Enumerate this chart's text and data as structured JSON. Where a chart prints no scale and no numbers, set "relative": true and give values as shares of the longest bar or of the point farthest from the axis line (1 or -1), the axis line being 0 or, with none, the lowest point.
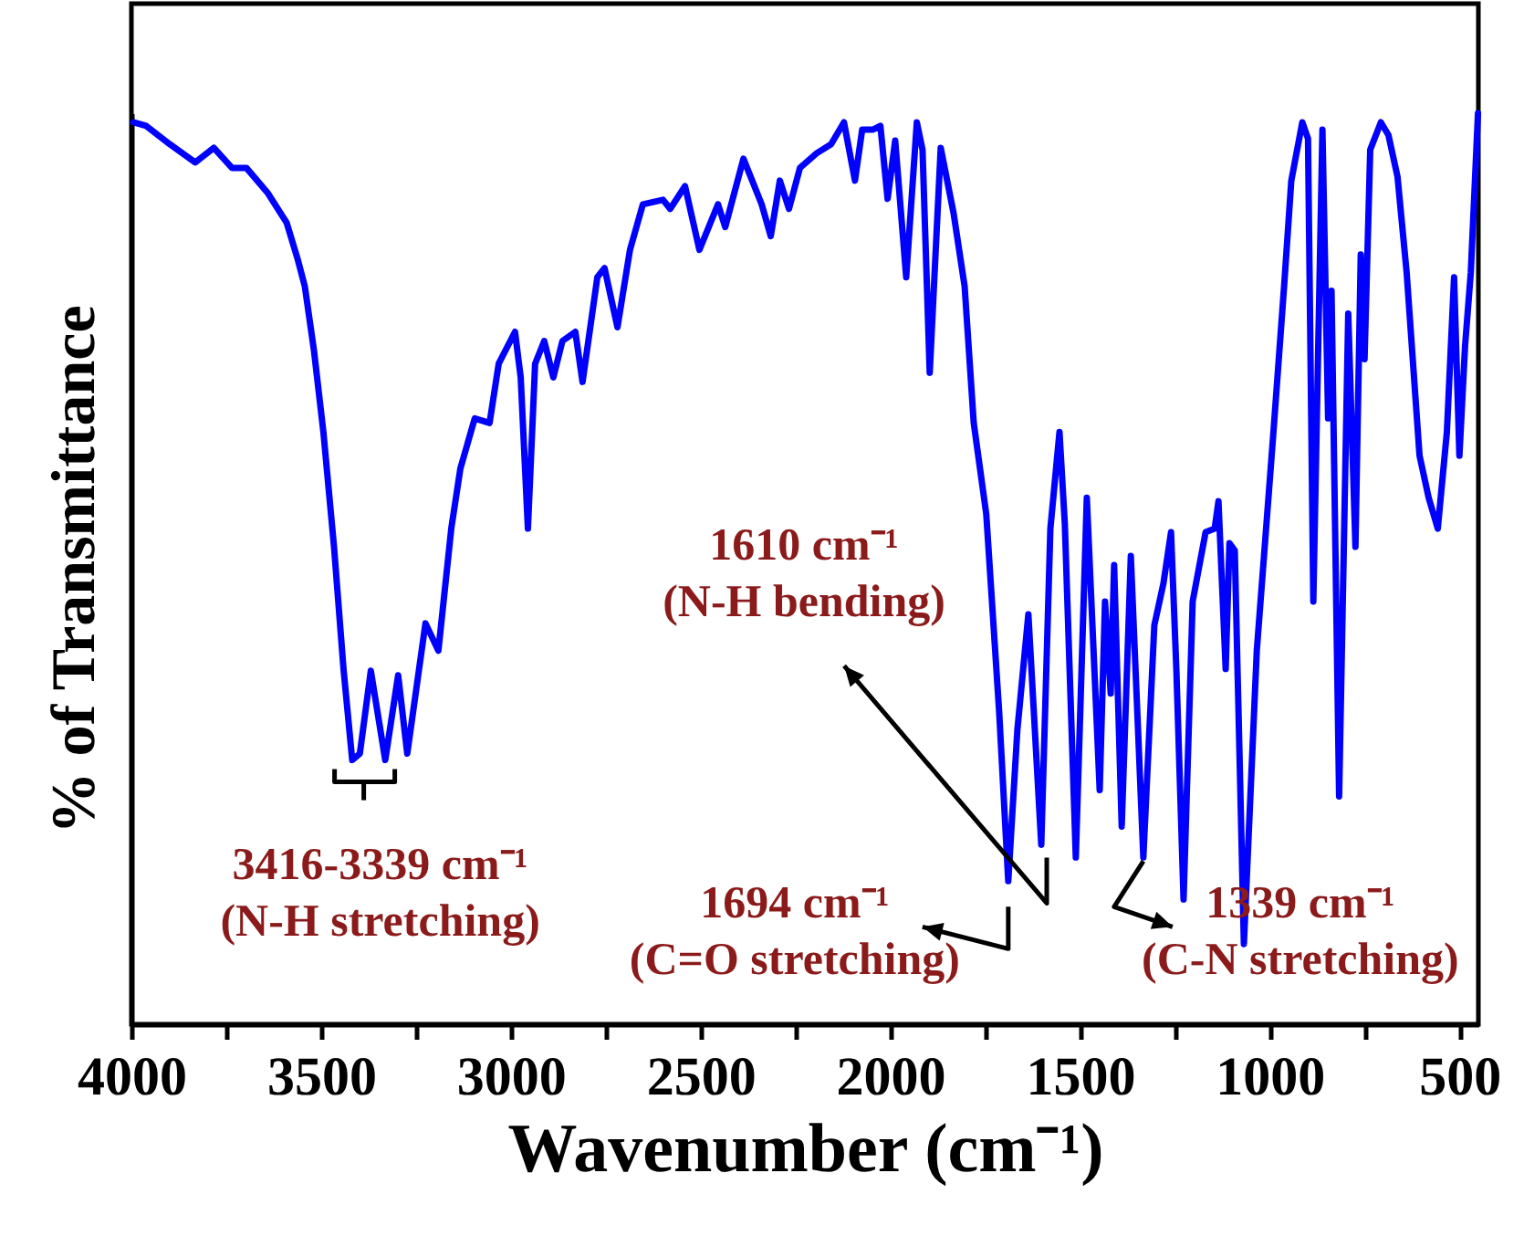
{
  "chart_data": {
    "type": "line",
    "xlabel": "Wavenumber (cm⁻¹)",
    "ylabel": "% of Transmittance",
    "relative": true,
    "tick_labels": "x",
    "xlim": [
      4000,
      450
    ],
    "xticks": [
      4000,
      {
        "value": 3750,
        "label": null
      },
      3500,
      {
        "value": 3250,
        "label": null
      },
      3000,
      {
        "value": 2750,
        "label": null
      },
      2500,
      {
        "value": 2250,
        "label": null
      },
      2000,
      {
        "value": 1750,
        "label": null
      },
      1500,
      {
        "value": 1250,
        "label": null
      },
      1000,
      {
        "value": 750,
        "label": null
      },
      500
    ],
    "series": [
      {
        "color": "#0000ff",
        "x": [
          3995,
          3961,
          3899,
          3832,
          3783,
          3735,
          3697,
          3640,
          3591,
          3562,
          3543,
          3519,
          3494,
          3466,
          3441,
          3418,
          3398,
          3369,
          3331,
          3297,
          3273,
          3225,
          3191,
          3157,
          3133,
          3095,
          3056,
          3032,
          2989,
          2974,
          2955,
          2936,
          2912,
          2888,
          2864,
          2830,
          2811,
          2772,
          2753,
          2719,
          2686,
          2652,
          2599,
          2580,
          2541,
          2503,
          2454,
          2435,
          2387,
          2339,
          2315,
          2291,
          2267,
          2238,
          2194,
          2156,
          2122,
          2093,
          2074,
          2045,
          2026,
          2007,
          1987,
          1958,
          1930,
          1915,
          1896,
          1867,
          1833,
          1804,
          1780,
          1747,
          1713,
          1689,
          1665,
          1636,
          1602,
          1578,
          1554,
          1540,
          1511,
          1482,
          1448,
          1434,
          1419,
          1410,
          1390,
          1366,
          1333,
          1304,
          1280,
          1260,
          1246,
          1227,
          1203,
          1169,
          1145,
          1135,
          1116,
          1106,
          1092,
          1068,
          1034,
          991,
          962,
          943,
          914,
          899,
          885,
          861,
          846,
          837,
          817,
          793,
          774,
          760,
          750,
          735,
          707,
          687,
          663,
          639,
          605,
          581,
          557,
          533,
          514,
          500,
          485,
          470,
          451
        ],
        "values": [
          0.99,
          0.986,
          0.966,
          0.946,
          0.962,
          0.94,
          0.94,
          0.912,
          0.88,
          0.84,
          0.81,
          0.74,
          0.65,
          0.524,
          0.39,
          0.29,
          0.297,
          0.388,
          0.29,
          0.383,
          0.297,
          0.44,
          0.41,
          0.544,
          0.61,
          0.665,
          0.66,
          0.725,
          0.76,
          0.71,
          0.544,
          0.725,
          0.75,
          0.71,
          0.75,
          0.76,
          0.705,
          0.82,
          0.83,
          0.765,
          0.85,
          0.9,
          0.905,
          0.895,
          0.92,
          0.85,
          0.9,
          0.875,
          0.95,
          0.9,
          0.865,
          0.926,
          0.895,
          0.94,
          0.956,
          0.966,
          0.99,
          0.926,
          0.982,
          0.982,
          0.986,
          0.906,
          0.97,
          0.82,
          0.99,
          0.96,
          0.715,
          0.962,
          0.89,
          0.81,
          0.66,
          0.56,
          0.343,
          0.157,
          0.323,
          0.45,
          0.197,
          0.544,
          0.65,
          0.55,
          0.183,
          0.578,
          0.257,
          0.464,
          0.363,
          0.504,
          0.217,
          0.514,
          0.183,
          0.438,
          0.484,
          0.54,
          0.39,
          0.137,
          0.464,
          0.54,
          0.544,
          0.574,
          0.39,
          0.528,
          0.52,
          0.088,
          0.41,
          0.645,
          0.81,
          0.926,
          0.99,
          0.972,
          0.464,
          0.982,
          0.665,
          0.805,
          0.25,
          0.78,
          0.524,
          0.845,
          0.73,
          0.96,
          0.99,
          0.976,
          0.93,
          0.825,
          0.624,
          0.578,
          0.544,
          0.65,
          0.82,
          0.624,
          0.745,
          0.825,
          1.0
        ]
      }
    ],
    "annotations": [
      {
        "text": "3416-3339 cm⁻¹\n(N-H stretching)",
        "x": 3378,
        "y": 0.29
      },
      {
        "text": "1610 cm⁻¹\n(N-H bending)",
        "x": 1602,
        "y": 0.197
      },
      {
        "text": "1694 cm⁻¹\n(C=O stretching)",
        "x": 1689,
        "y": 0.157
      },
      {
        "text": "1339 cm⁻¹\n(C-N stretching)",
        "x": 1333,
        "y": 0.183
      }
    ]
  }
}
